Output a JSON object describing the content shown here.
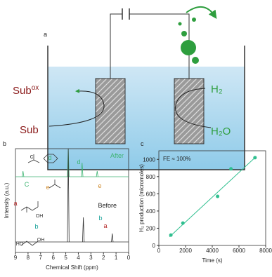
{
  "figure": {
    "panel_a": {
      "label": "a",
      "sub_ox": {
        "base": "Sub",
        "sup": "ox"
      },
      "sub": "Sub",
      "h2": "H₂",
      "h2o": "H₂O"
    }
  },
  "chart_data": [
    {
      "type": "spectrum",
      "label": "b",
      "xlabel": "Chemical Shift (ppm)",
      "ylabel": "Intensity (a.u.)",
      "xlim": [
        9,
        0
      ],
      "xticks": [
        9,
        8,
        7,
        6,
        5,
        4,
        3,
        2,
        1,
        0
      ],
      "series": [
        {
          "name": "After",
          "color": "#3cb371",
          "x": [
            8.4,
            4.8,
            3.7,
            2.5
          ],
          "values": [
            8,
            40,
            20,
            8
          ]
        },
        {
          "name": "Before",
          "color": "#333333",
          "x": [
            4.8,
            3.6,
            1.3
          ],
          "values": [
            133,
            35,
            12
          ]
        }
      ],
      "annotations": [
        {
          "text": "c",
          "color": "#333333"
        },
        {
          "text": "d",
          "color": "#3cb371"
        },
        {
          "text": "C",
          "color": "#3cb371"
        },
        {
          "text": "e",
          "color": "#d08a2c"
        },
        {
          "text": "d",
          "color": "#3cb371"
        },
        {
          "text": "e",
          "color": "#d08a2c"
        },
        {
          "text": "a",
          "color": "#b22222"
        },
        {
          "text": "OH",
          "color": "#333333"
        },
        {
          "text": "b",
          "color": "#1aa39a"
        },
        {
          "text": "HO",
          "color": "#333333"
        },
        {
          "text": "OH",
          "color": "#333333"
        },
        {
          "text": "b",
          "color": "#1aa39a"
        },
        {
          "text": "a",
          "color": "#b22222"
        }
      ]
    },
    {
      "type": "scatter",
      "label": "c",
      "xlabel": "Time (s)",
      "ylabel": "H₂ production (micromoles)",
      "annotation": "FE ≈ 100%",
      "color": "#2fbf8f",
      "xlim": [
        0,
        8000
      ],
      "ylim": [
        0,
        1100
      ],
      "xticks": [
        0,
        2000,
        4000,
        6000,
        8000
      ],
      "yticks": [
        0,
        200,
        400,
        600,
        800,
        1000
      ],
      "x": [
        900,
        1800,
        4400,
        5400,
        7200
      ],
      "values": [
        120,
        260,
        570,
        890,
        1020
      ],
      "fit": {
        "x": [
          800,
          7300
        ],
        "values": [
          100,
          1035
        ]
      }
    }
  ]
}
